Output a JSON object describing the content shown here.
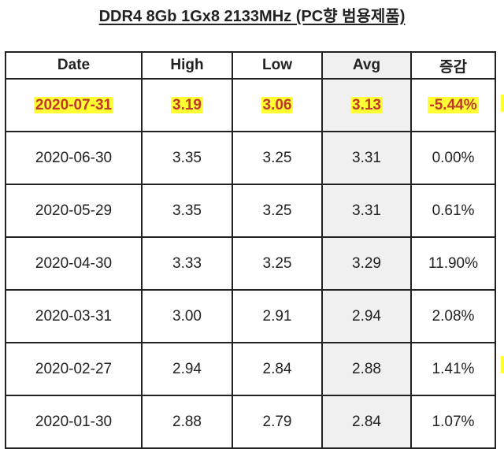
{
  "title": "DDR4 8Gb 1Gx8 2133MHz (PC향 범용제품)",
  "columns": [
    "Date",
    "High",
    "Low",
    "Avg",
    "증감"
  ],
  "highlight_color": "#ffff33",
  "highlight_text_color": "#c0392b",
  "rows": [
    [
      "2020-07-31",
      "3.19",
      "3.06",
      "3.13",
      "-5.44%"
    ],
    [
      "2020-06-30",
      "3.35",
      "3.25",
      "3.31",
      "0.00%"
    ],
    [
      "2020-05-29",
      "3.35",
      "3.25",
      "3.31",
      "0.61%"
    ],
    [
      "2020-04-30",
      "3.33",
      "3.25",
      "3.29",
      "11.90%"
    ],
    [
      "2020-03-31",
      "3.00",
      "2.91",
      "2.94",
      "2.08%"
    ],
    [
      "2020-02-27",
      "2.94",
      "2.84",
      "2.88",
      "1.41%"
    ],
    [
      "2020-01-30",
      "2.88",
      "2.79",
      "2.84",
      "1.07%"
    ]
  ]
}
